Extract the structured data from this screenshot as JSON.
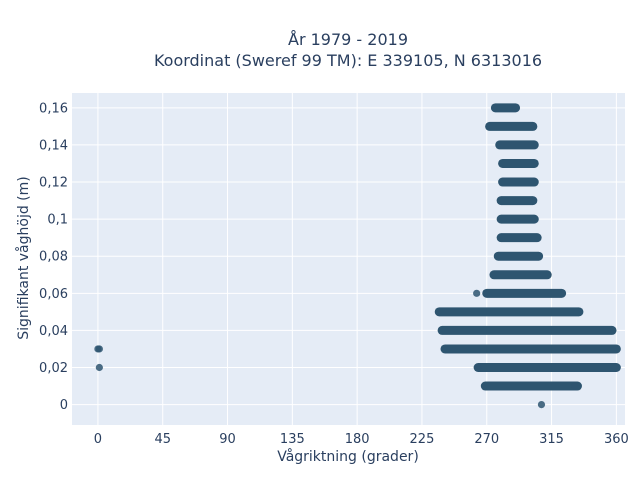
{
  "chart_data": {
    "type": "scatter",
    "title_line1": "År 1979 - 2019",
    "title_line2": "Koordinat (Sweref 99 TM): E 339105, N 6313016",
    "xlabel": "Vågriktning (grader)",
    "ylabel": "Signifikant våghöjd (m)",
    "xlim": [
      -18,
      366
    ],
    "ylim": [
      -0.011,
      0.168
    ],
    "xticks": [
      0,
      45,
      90,
      135,
      180,
      225,
      270,
      315,
      360
    ],
    "xtick_labels": [
      "0",
      "45",
      "90",
      "135",
      "180",
      "225",
      "270",
      "315",
      "360"
    ],
    "yticks": [
      0,
      0.02,
      0.04,
      0.06,
      0.08,
      0.1,
      0.12,
      0.14,
      0.16
    ],
    "ytick_labels": [
      "0",
      "0,02",
      "0,04",
      "0,06",
      "0,08",
      "0,1",
      "0,12",
      "0,14",
      "0,16"
    ],
    "grid": true,
    "colors": {
      "background": "#e5ecf6",
      "grid": "#ffffff",
      "marker": "#2e5570",
      "text": "#2a3f5f"
    },
    "bands": [
      {
        "y": 0.16,
        "x_min": 276,
        "x_max": 290
      },
      {
        "y": 0.15,
        "x_min": 272,
        "x_max": 302
      },
      {
        "y": 0.14,
        "x_min": 279,
        "x_max": 303
      },
      {
        "y": 0.13,
        "x_min": 281,
        "x_max": 303
      },
      {
        "y": 0.12,
        "x_min": 281,
        "x_max": 303
      },
      {
        "y": 0.11,
        "x_min": 280,
        "x_max": 302
      },
      {
        "y": 0.1,
        "x_min": 280,
        "x_max": 303
      },
      {
        "y": 0.09,
        "x_min": 280,
        "x_max": 305
      },
      {
        "y": 0.08,
        "x_min": 278,
        "x_max": 306
      },
      {
        "y": 0.07,
        "x_min": 275,
        "x_max": 312
      },
      {
        "y": 0.06,
        "x_min": 270,
        "x_max": 322
      },
      {
        "y": 0.05,
        "x_min": 237,
        "x_max": 334
      },
      {
        "y": 0.04,
        "x_min": 239,
        "x_max": 357
      },
      {
        "y": 0.03,
        "x_min": 241,
        "x_max": 360
      },
      {
        "y": 0.02,
        "x_min": 264,
        "x_max": 360
      },
      {
        "y": 0.01,
        "x_min": 269,
        "x_max": 333
      }
    ],
    "points": [
      {
        "x": 0,
        "y": 0.03
      },
      {
        "x": 1,
        "y": 0.03
      },
      {
        "x": 1,
        "y": 0.02
      },
      {
        "x": 263,
        "y": 0.06
      },
      {
        "x": 264,
        "y": 0.02
      },
      {
        "x": 331,
        "y": 0.01
      },
      {
        "x": 308,
        "y": 0
      }
    ]
  }
}
